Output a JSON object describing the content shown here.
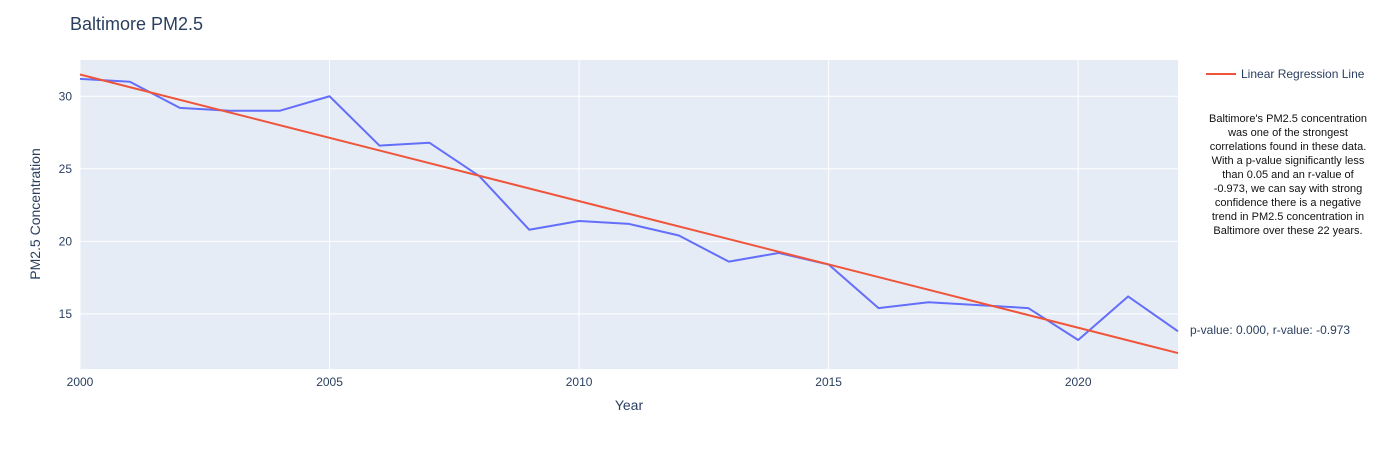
{
  "chart_data": {
    "type": "line",
    "title": "Baltimore PM2.5",
    "xlabel": "Year",
    "ylabel": "PM2.5 Concentration",
    "xlim": [
      2000,
      2022
    ],
    "ylim": [
      11.2,
      32.5
    ],
    "x_ticks": [
      2000,
      2005,
      2010,
      2015,
      2020
    ],
    "y_ticks": [
      15,
      20,
      25,
      30
    ],
    "grid": true,
    "legend_position": "top-right",
    "x": [
      2000,
      2001,
      2002,
      2003,
      2004,
      2005,
      2006,
      2007,
      2008,
      2009,
      2010,
      2011,
      2012,
      2013,
      2014,
      2015,
      2016,
      2017,
      2018,
      2019,
      2020,
      2021,
      2022
    ],
    "series": [
      {
        "values": [
          31.2,
          31.0,
          29.2,
          29.0,
          29.0,
          30.0,
          26.6,
          26.8,
          24.5,
          20.8,
          21.4,
          21.2,
          20.4,
          18.6,
          19.2,
          18.4,
          15.4,
          15.8,
          15.6,
          15.4,
          13.2,
          16.2,
          13.8
        ],
        "color": "#636efa"
      },
      {
        "name": "Linear Regression Line",
        "x": [
          2000,
          2022
        ],
        "values": [
          31.5,
          12.3
        ],
        "color": "#ef553b"
      }
    ],
    "annotations": [
      "p-value: 0.000, r-value: -0.973"
    ],
    "note": "Baltimore's PM2.5 concentration was one of the strongest correlations found in these data. With a p-value significantly less than 0.05 and an r-value of -0.973, we can say with strong confidence there is a negative trend in PM2.5 concentration in Baltimore over these 22 years."
  },
  "colors": {
    "plot_bg": "#e5ecf6",
    "grid": "#ffffff",
    "text": "#2a3f5f"
  }
}
